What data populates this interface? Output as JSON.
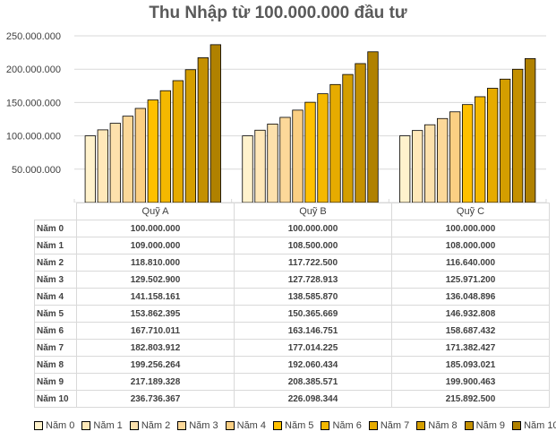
{
  "chart_data": {
    "type": "bar",
    "title": "Thu Nhập từ 100.000.000 đầu tư",
    "categories": [
      "Quỹ A",
      "Quỹ B",
      "Quỹ C"
    ],
    "ylim": [
      0,
      250000000
    ],
    "yticks": [
      "-",
      "50.000.000",
      "100.000.000",
      "150.000.000",
      "200.000.000",
      "250.000.000"
    ],
    "grid": true,
    "legend_position": "bottom",
    "series": [
      {
        "name": "Năm 0",
        "color": "#fff2cc",
        "values": [
          100000000,
          100000000,
          100000000
        ],
        "labels": [
          "100.000.000",
          "100.000.000",
          "100.000.000"
        ]
      },
      {
        "name": "Năm 1",
        "color": "#ffe8b9",
        "values": [
          109000000,
          108500000,
          108000000
        ],
        "labels": [
          "109.000.000",
          "108.500.000",
          "108.000.000"
        ]
      },
      {
        "name": "Năm 2",
        "color": "#fde1ac",
        "values": [
          118810000,
          117722500,
          116640000
        ],
        "labels": [
          "118.810.000",
          "117.722.500",
          "116.640.000"
        ]
      },
      {
        "name": "Năm 3",
        "color": "#fcd899",
        "values": [
          129502900,
          127728913,
          125971200
        ],
        "labels": [
          "129.502.900",
          "127.728.913",
          "125.971.200"
        ]
      },
      {
        "name": "Năm 4",
        "color": "#fbcf83",
        "values": [
          141158161,
          138585870,
          136048896
        ],
        "labels": [
          "141.158.161",
          "138.585.870",
          "136.048.896"
        ]
      },
      {
        "name": "Năm 5",
        "color": "#ffc000",
        "values": [
          153862395,
          150365669,
          146932808
        ],
        "labels": [
          "153.862.395",
          "150.365.669",
          "146.932.808"
        ]
      },
      {
        "name": "Năm 6",
        "color": "#f4b800",
        "values": [
          167710011,
          163146751,
          158687432
        ],
        "labels": [
          "167.710.011",
          "163.146.751",
          "158.687.432"
        ]
      },
      {
        "name": "Năm 7",
        "color": "#e6ab00",
        "values": [
          182803912,
          177014225,
          171382427
        ],
        "labels": [
          "182.803.912",
          "177.014.225",
          "171.382.427"
        ]
      },
      {
        "name": "Năm 8",
        "color": "#d49e00",
        "values": [
          199256264,
          192060434,
          185093021
        ],
        "labels": [
          "199.256.264",
          "192.060.434",
          "185.093.021"
        ]
      },
      {
        "name": "Năm 9",
        "color": "#c49000",
        "values": [
          217189328,
          208385571,
          199900463
        ],
        "labels": [
          "217.189.328",
          "208.385.571",
          "199.900.463"
        ]
      },
      {
        "name": "Năm 10",
        "color": "#b08100",
        "values": [
          236736367,
          226098344,
          215892500
        ],
        "labels": [
          "236.736.367",
          "226.098.344",
          "215.892.500"
        ]
      }
    ]
  }
}
